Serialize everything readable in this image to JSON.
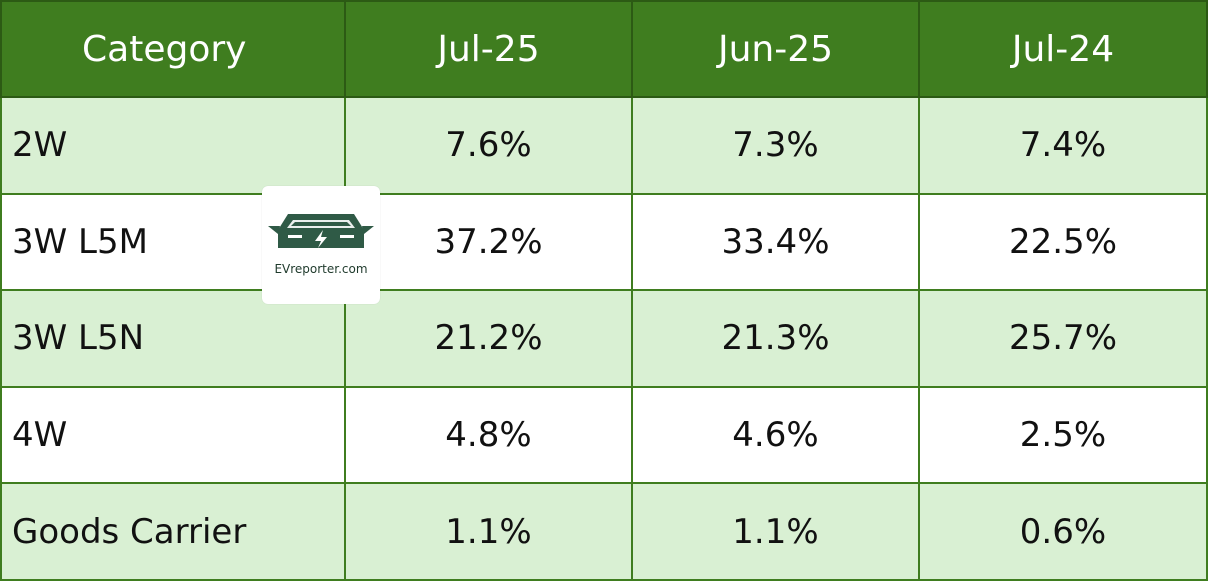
{
  "table": {
    "headers": [
      "Category",
      "Jul-25",
      "Jun-25",
      "Jul-24"
    ],
    "rows": [
      {
        "category": "2W",
        "values": [
          "7.6%",
          "7.3%",
          "7.4%"
        ]
      },
      {
        "category": "3W L5M",
        "values": [
          "37.2%",
          "33.4%",
          "22.5%"
        ]
      },
      {
        "category": "3W L5N",
        "values": [
          "21.2%",
          "21.3%",
          "25.7%"
        ]
      },
      {
        "category": "4W",
        "values": [
          "4.8%",
          "4.6%",
          "2.5%"
        ]
      },
      {
        "category": "Goods Carrier",
        "values": [
          "1.1%",
          "1.1%",
          "0.6%"
        ]
      }
    ]
  },
  "logo": {
    "text": "EVreporter.com",
    "icon": "ev-car-bolt-icon"
  },
  "colors": {
    "header_bg": "#3f7d1f",
    "row_shade": "#d9f0d3",
    "border": "#3f7d1f",
    "logo_dark": "#2f5a46"
  }
}
